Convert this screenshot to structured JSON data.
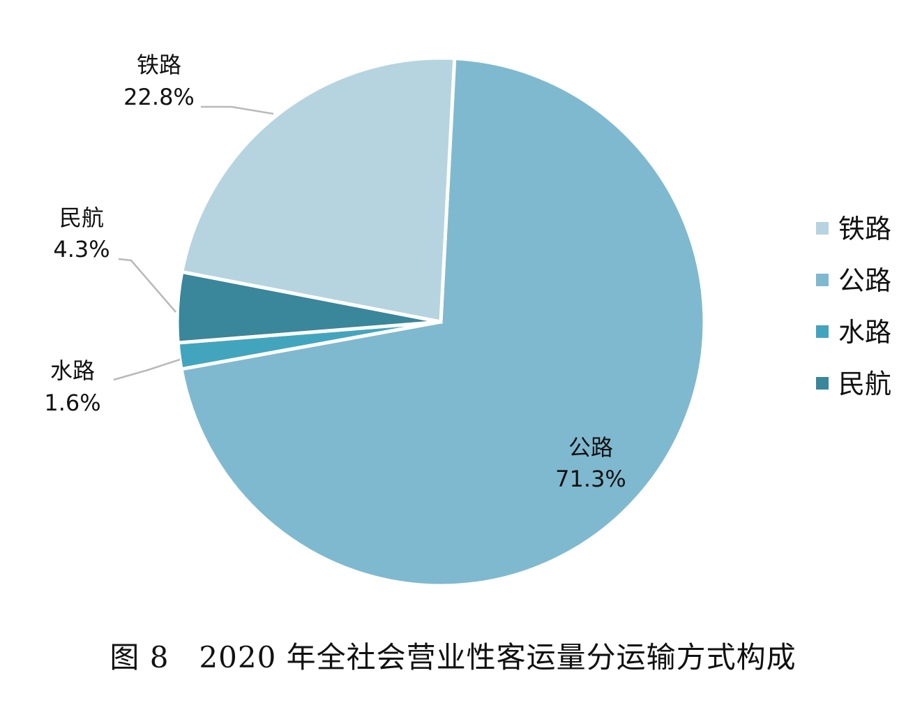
{
  "caption": "图 8　2020 年全社会营业性客运量分运输方式构成",
  "chart_data": {
    "type": "pie",
    "title": "",
    "slices": [
      {
        "name": "公路",
        "value": 71.3,
        "label": "71.3%",
        "color": "#7fb9cf"
      },
      {
        "name": "水路",
        "value": 1.6,
        "label": "1.6%",
        "color": "#43a5bd"
      },
      {
        "name": "民航",
        "value": 4.3,
        "label": "4.3%",
        "color": "#3a869a"
      },
      {
        "name": "铁路",
        "value": 22.8,
        "label": "22.8%",
        "color": "#b6d4df"
      }
    ],
    "legend": {
      "placement": "right",
      "items": [
        {
          "name": "铁路",
          "color": "#b6d4df"
        },
        {
          "name": "公路",
          "color": "#7fb9cf"
        },
        {
          "name": "水路",
          "color": "#43a5bd"
        },
        {
          "name": "民航",
          "color": "#3a869a"
        }
      ]
    },
    "leader_line_color": "#b9b9b9"
  }
}
